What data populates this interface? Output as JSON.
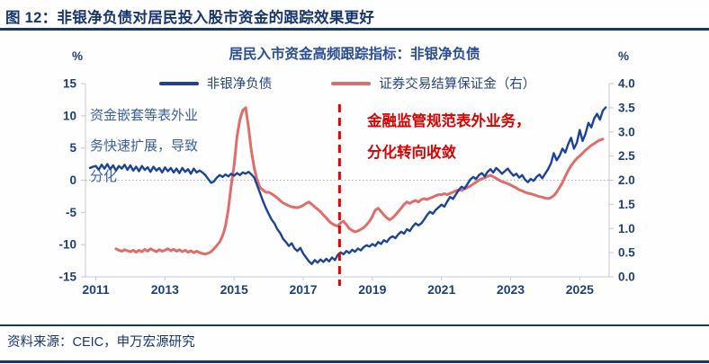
{
  "header": {
    "title": "图 12：非银净负债对居民投入股市资金的跟踪效果更好"
  },
  "footer": {
    "source": "资料来源：CEIC，申万宏源研究"
  },
  "chart_data": {
    "type": "line",
    "title": "居民入市资金高频跟踪指标：非银净负债",
    "legend_position": "top",
    "grid": "zero-line-only",
    "colors": {
      "blue_line": "#1a449c",
      "red_line": "#df6e6a",
      "axis_border": "#c5c9d4",
      "zero_line": "#a8adb8",
      "navy_text": "#16366d"
    },
    "left_axis": {
      "unit": "%",
      "min": -15,
      "max": 15,
      "ticks": [
        "15",
        "10",
        "5",
        "0",
        "-5",
        "-10",
        "-15"
      ]
    },
    "right_axis": {
      "unit": "%",
      "min": 0,
      "max": 4,
      "ticks": [
        "4.0",
        "3.5",
        "3.0",
        "2.5",
        "2.0",
        "1.5",
        "1.0",
        "0.5",
        "0.0"
      ]
    },
    "x_axis": {
      "min": 2010.7,
      "max": 2025.85,
      "ticks": [
        "2011",
        "2013",
        "2015",
        "2017",
        "2019",
        "2021",
        "2023",
        "2025"
      ]
    },
    "event_line": {
      "year": 2018.05,
      "color": "#e60000",
      "style": "dashed"
    },
    "annotations": {
      "left": {
        "color": "#3c60a8",
        "lines": [
          "资金嵌套等表外业",
          "务快速扩展，导致",
          "分化"
        ]
      },
      "right": {
        "color": "#dc0000",
        "lines": [
          "金融监管规范表外业务，",
          "分化转向收敛"
        ]
      }
    },
    "series": [
      {
        "name": "非银净负债",
        "axis": "left",
        "color": "#1a449c",
        "start_year": 2010,
        "start_month": 11,
        "step_months": 1,
        "values": [
          1.9,
          2.1,
          2.2,
          1.6,
          2.4,
          1.8,
          2.5,
          1.7,
          2.3,
          1.5,
          2.2,
          1.8,
          2.4,
          1.6,
          2.3,
          1.5,
          2.1,
          1.4,
          2.2,
          1.6,
          2.0,
          1.3,
          2.1,
          1.5,
          1.9,
          1.2,
          2.0,
          1.4,
          1.9,
          1.2,
          1.8,
          1.1,
          1.9,
          1.3,
          1.7,
          1.0,
          1.8,
          1.2,
          1.5,
          1.2,
          0.8,
          0.2,
          -0.4,
          -0.2,
          0.4,
          0.8,
          0.5,
          0.9,
          0.6,
          1.0,
          0.7,
          1.1,
          0.8,
          1.2,
          1.0,
          1.3,
          0.9,
          0.4,
          -0.8,
          -2.0,
          -3.2,
          -4.3,
          -5.2,
          -6.1,
          -6.7,
          -7.6,
          -8.2,
          -9.1,
          -9.6,
          -10.2,
          -9.8,
          -10.6,
          -11.0,
          -10.5,
          -11.4,
          -12.0,
          -12.6,
          -13.0,
          -12.4,
          -12.8,
          -12.3,
          -12.7,
          -12.2,
          -12.6,
          -12.0,
          -12.4,
          -11.6,
          -11.2,
          -11.5,
          -11.0,
          -11.3,
          -10.8,
          -11.1,
          -10.6,
          -10.9,
          -10.4,
          -10.1,
          -10.3,
          -9.9,
          -10.2,
          -9.6,
          -9.9,
          -9.3,
          -9.6,
          -9.0,
          -8.7,
          -9.0,
          -8.4,
          -8.0,
          -8.3,
          -7.6,
          -7.9,
          -7.2,
          -6.7,
          -7.0,
          -6.7,
          -6.1,
          -5.4,
          -4.9,
          -5.2,
          -4.6,
          -4.2,
          -3.8,
          -4.1,
          -3.3,
          -2.6,
          -2.9,
          -2.2,
          -1.5,
          -1.0,
          -1.3,
          -0.6,
          0.1,
          0.5,
          0.2,
          0.8,
          1.1,
          0.6,
          1.3,
          1.7,
          1.2,
          1.9,
          1.5,
          1.0,
          1.4,
          1.8,
          1.2,
          0.7,
          1.0,
          0.4,
          0.8,
          0.1,
          -0.3,
          0.2,
          -0.1,
          0.5,
          0.9,
          0.3,
          1.0,
          1.7,
          2.6,
          4.2,
          3.1,
          3.8,
          4.9,
          4.3,
          5.6,
          6.6,
          4.9,
          5.8,
          7.8,
          6.1,
          7.2,
          8.9,
          8.2,
          9.6,
          10.3,
          9.4,
          10.8,
          11.3
        ]
      },
      {
        "name": "证券交易结算保证金（右）",
        "axis": "right",
        "color": "#df6e6a",
        "start_year": 2011,
        "start_month": 8,
        "step_months": 1,
        "values": [
          0.58,
          0.55,
          0.53,
          0.56,
          0.54,
          0.52,
          0.55,
          0.51,
          0.55,
          0.52,
          0.57,
          0.53,
          0.58,
          0.55,
          0.52,
          0.56,
          0.53,
          0.55,
          0.58,
          0.54,
          0.57,
          0.53,
          0.56,
          0.52,
          0.55,
          0.51,
          0.54,
          0.5,
          0.53,
          0.5,
          0.48,
          0.47,
          0.49,
          0.52,
          0.58,
          0.65,
          0.72,
          0.85,
          1.05,
          1.4,
          1.9,
          2.3,
          2.9,
          3.25,
          3.45,
          3.5,
          3.1,
          2.6,
          2.25,
          2.0,
          1.85,
          1.8,
          1.75,
          1.75,
          1.72,
          1.68,
          1.63,
          1.58,
          1.53,
          1.5,
          1.47,
          1.45,
          1.44,
          1.43,
          1.45,
          1.48,
          1.52,
          1.55,
          1.5,
          1.45,
          1.4,
          1.35,
          1.28,
          1.22,
          1.15,
          1.1,
          1.07,
          1.05,
          1.12,
          1.15,
          1.08,
          1.0,
          0.96,
          0.93,
          0.95,
          0.98,
          1.02,
          1.08,
          1.15,
          1.25,
          1.38,
          1.42,
          1.35,
          1.28,
          1.22,
          1.18,
          1.22,
          1.28,
          1.35,
          1.42,
          1.5,
          1.55,
          1.52,
          1.56,
          1.58,
          1.55,
          1.6,
          1.62,
          1.6,
          1.63,
          1.65,
          1.68,
          1.7,
          1.7,
          1.72,
          1.7,
          1.73,
          1.75,
          1.78,
          1.8,
          1.79,
          1.82,
          1.85,
          1.88,
          1.92,
          1.96,
          2.0,
          2.03,
          2.05,
          2.08,
          2.1,
          2.07,
          2.04,
          2.0,
          1.97,
          1.95,
          1.93,
          1.9,
          1.87,
          1.84,
          1.8,
          1.78,
          1.75,
          1.73,
          1.72,
          1.7,
          1.68,
          1.66,
          1.65,
          1.63,
          1.62,
          1.64,
          1.68,
          1.75,
          1.85,
          1.95,
          2.08,
          2.2,
          2.3,
          2.38,
          2.45,
          2.5,
          2.56,
          2.62,
          2.67,
          2.72,
          2.76,
          2.8,
          2.83,
          2.85
        ]
      }
    ]
  }
}
